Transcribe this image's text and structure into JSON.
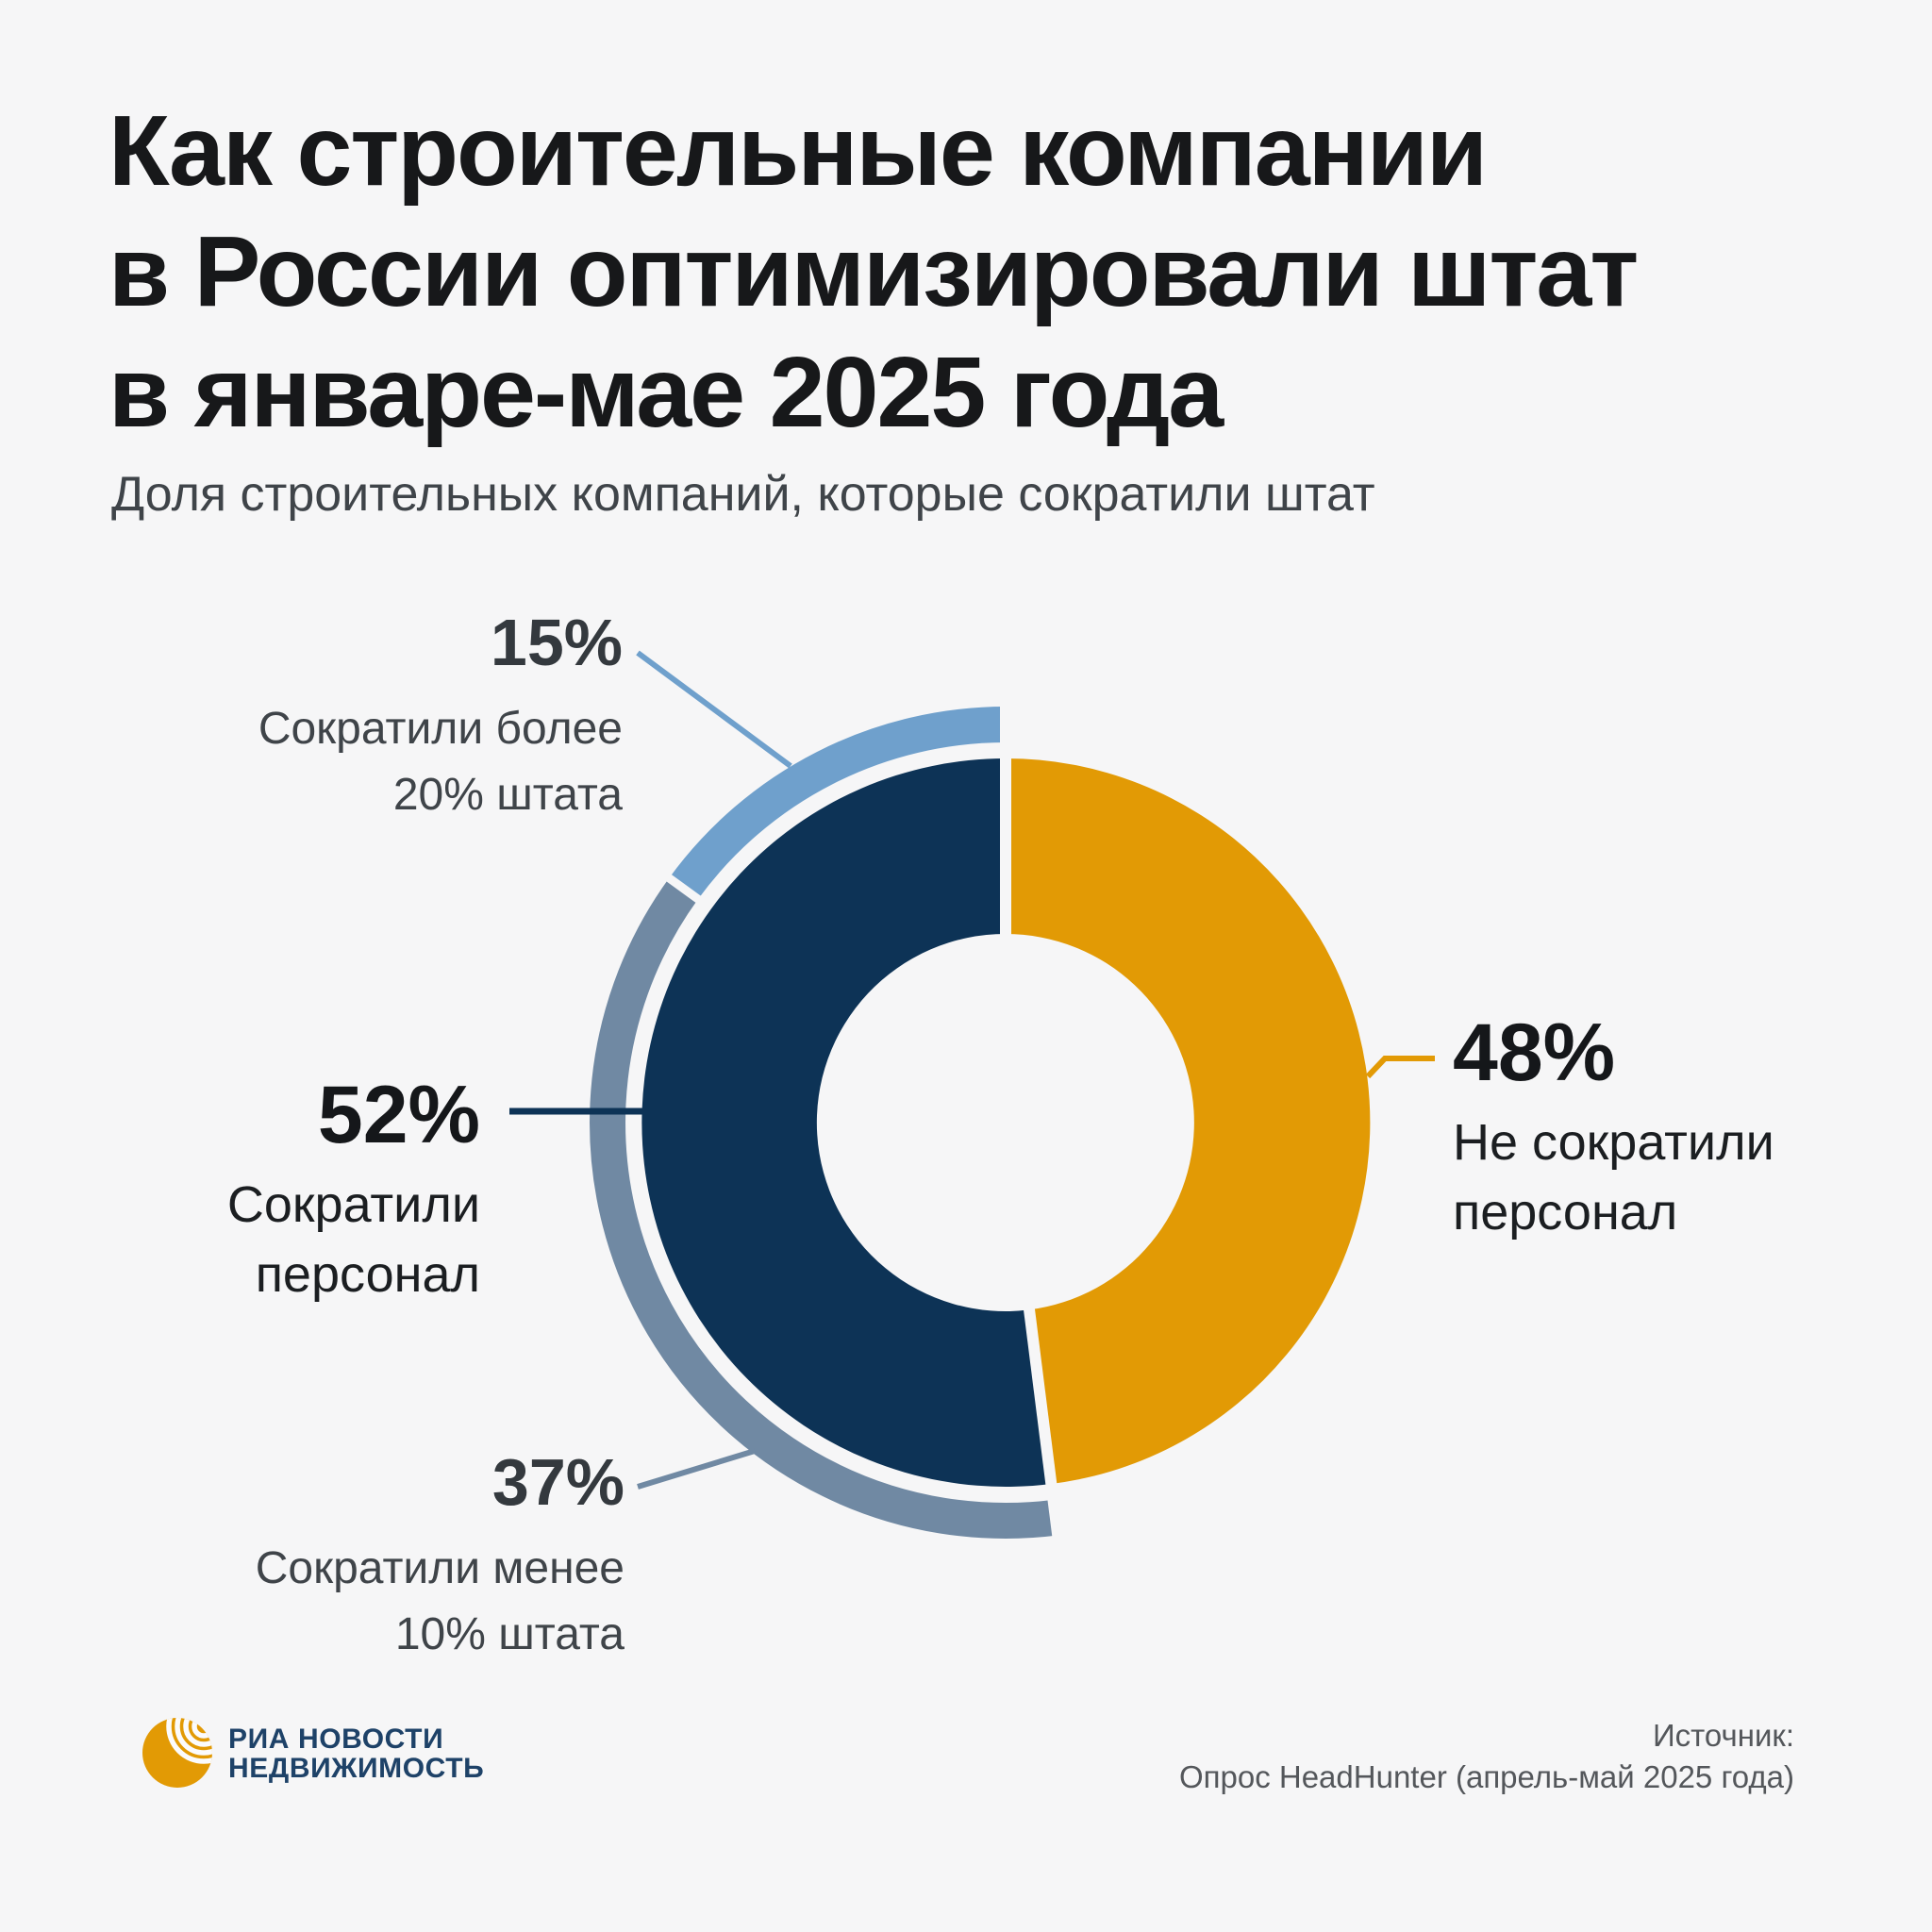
{
  "page": {
    "background": "#F6F6F7"
  },
  "header": {
    "title_line1": "Как строительные компании",
    "title_line2": "в России оптимизировали штат",
    "title_line3": "в январе-мае 2025 года",
    "subtitle": "Доля строительных компаний, которые сократили штат"
  },
  "chart_data": {
    "type": "donut",
    "title": "Как строительные компании в России оптимизировали штат в январе-мае 2025 года",
    "subtitle": "Доля строительных компаний, которые сократили штат",
    "unit": "%",
    "series": [
      {
        "label": "Не сократили персонал",
        "value": 48,
        "color": "#E29A05",
        "ring": "main"
      },
      {
        "label": "Сократили персонал",
        "value": 52,
        "color": "#0D3356",
        "ring": "main"
      },
      {
        "label": "Сократили более 20% штата",
        "value": 15,
        "color": "#6FA0CC",
        "ring": "outer"
      },
      {
        "label": "Сократили менее 10% штата",
        "value": 37,
        "color": "#7089A3",
        "ring": "outer"
      }
    ],
    "note": "Outer ring (15% + 37%) is the breakdown of the 52% dark segment",
    "source": "Источник: Опрос HeadHunter (апрель-май 2025 года)"
  },
  "callouts": {
    "cut_more_20": {
      "pct": "15%",
      "line1": "Сократили более",
      "line2": "20% штата"
    },
    "cut_staff": {
      "pct": "52%",
      "line1": "Сократили",
      "line2": "персонал"
    },
    "cut_less_10": {
      "pct": "37%",
      "line1": "Сократили менее",
      "line2": "10% штата"
    },
    "not_cut": {
      "pct": "48%",
      "line1": "Не сократили",
      "line2": "персонал"
    }
  },
  "footer": {
    "logo_line1": "РИА НОВОСТИ",
    "logo_line2": "НЕДВИЖИМОСТЬ",
    "source_label": "Источник:",
    "source_text": "Опрос HeadHunter (апрель-май 2025 года)"
  }
}
